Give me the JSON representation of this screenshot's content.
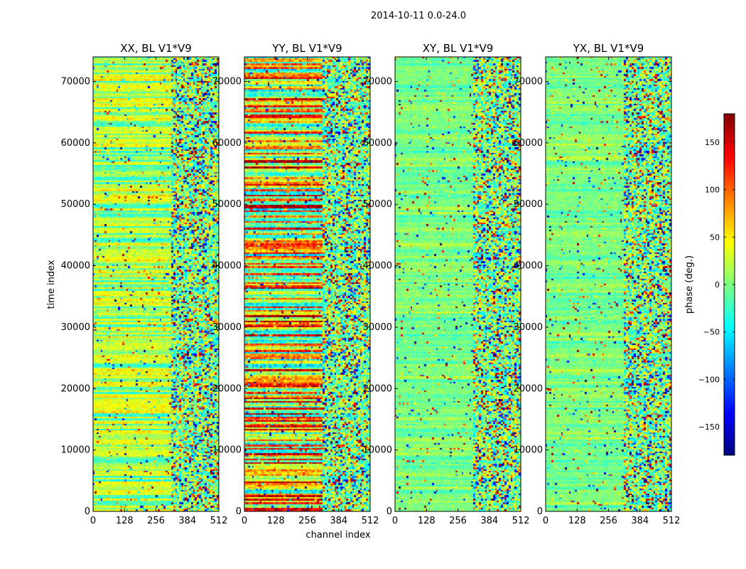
{
  "figure_title": "2014-10-11 0.0-24.0",
  "chart_data": {
    "type": "heatmap",
    "title": "2014-10-11 0.0-24.0",
    "xlabel": "channel index",
    "ylabel": "time index",
    "xlim": [
      0,
      512
    ],
    "ylim": [
      0,
      74000
    ],
    "x_ticks": [
      0,
      128,
      256,
      384,
      512
    ],
    "y_ticks": [
      0,
      10000,
      20000,
      30000,
      40000,
      50000,
      60000,
      70000
    ],
    "colorbar": {
      "label": "phase (deg.)",
      "range": [
        -180,
        180
      ],
      "ticks": [
        -150,
        -100,
        -50,
        0,
        50,
        100,
        150
      ],
      "colormap": "jet",
      "colors": [
        "#00007f",
        "#0000ff",
        "#007fff",
        "#00ffff",
        "#7fff7f",
        "#ffff00",
        "#ff7f00",
        "#ff0000",
        "#7f0000"
      ]
    },
    "panels": [
      {
        "title": "XX, BL V1*V9",
        "bias": 40,
        "spread": 35
      },
      {
        "title": "YY, BL V1*V9",
        "bias": 120,
        "spread": 60
      },
      {
        "title": "XY, BL V1*V9",
        "bias": 0,
        "spread": 25
      },
      {
        "title": "YX, BL V1*V9",
        "bias": 0,
        "spread": 25
      }
    ]
  }
}
